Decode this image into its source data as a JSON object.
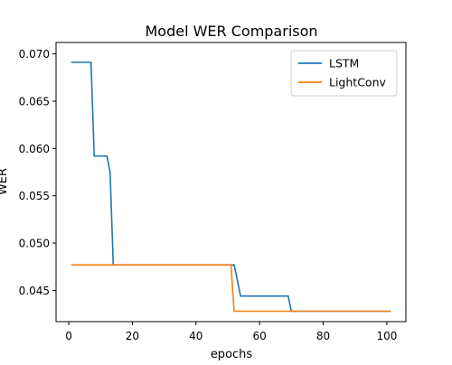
{
  "chart_data": {
    "type": "line",
    "title": "Model WER Comparison",
    "xlabel": "epochs",
    "ylabel": "WER",
    "xlim": [
      -4.0,
      106.0
    ],
    "ylim": [
      0.0417,
      0.0712
    ],
    "xticks": [
      0,
      20,
      40,
      60,
      80,
      100
    ],
    "yticks": [
      0.045,
      0.05,
      0.055,
      0.06,
      0.065,
      0.07
    ],
    "ytick_labels": [
      "0.045",
      "0.050",
      "0.055",
      "0.060",
      "0.065",
      "0.070"
    ],
    "grid": false,
    "legend_position": "upper-right",
    "series": [
      {
        "name": "LSTM",
        "color": "#1f77b4",
        "x": [
          1,
          7,
          8,
          12,
          13,
          14,
          52,
          53,
          54,
          69,
          70,
          101
        ],
        "y": [
          0.0691,
          0.0691,
          0.0592,
          0.0592,
          0.0575,
          0.0477,
          0.0477,
          0.0461,
          0.0444,
          0.0444,
          0.0428,
          0.0428
        ]
      },
      {
        "name": "LightConv",
        "color": "#ff7f0e",
        "x": [
          1,
          51,
          52,
          101
        ],
        "y": [
          0.0477,
          0.0477,
          0.0428,
          0.0428
        ]
      }
    ]
  }
}
